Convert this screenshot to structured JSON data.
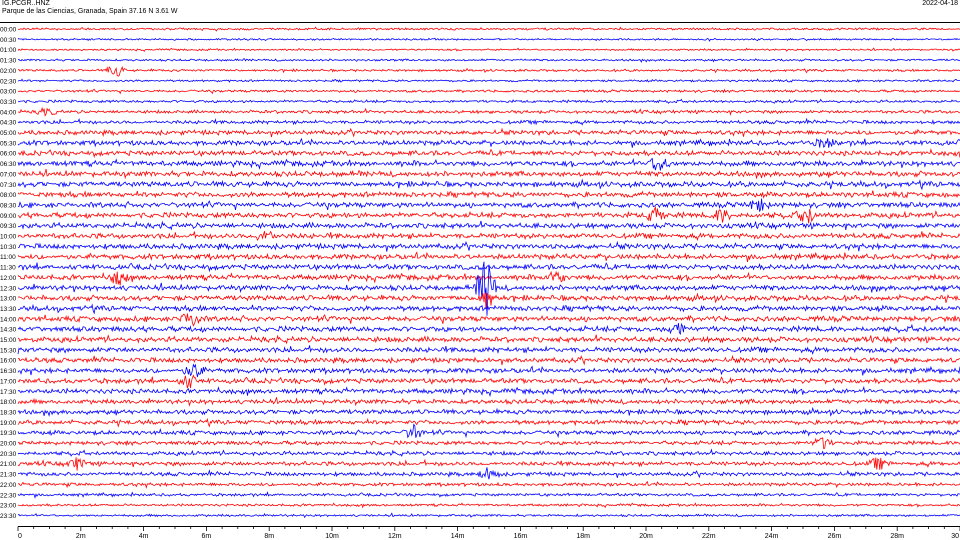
{
  "header": {
    "station": "IG.PCGR..HNZ",
    "location": "Parque de las Ciencias, Granada, Spain  37.16 N 3.61 W",
    "date": "2022-04-18"
  },
  "chart_data": {
    "type": "line",
    "title": "IG.PCGR..HNZ",
    "subtitle": "Parque de las Ciencias, Granada, Spain  37.16 N 3.61 W",
    "xlabel": "",
    "ylabel": "",
    "x_range_minutes": [
      0,
      30
    ],
    "x_ticks": [
      "0",
      "2m",
      "4m",
      "6m",
      "8m",
      "10m",
      "12m",
      "14m",
      "16m",
      "18m",
      "20m",
      "22m",
      "24m",
      "26m",
      "28m",
      "30"
    ],
    "x_tick_values": [
      0,
      2,
      4,
      6,
      8,
      10,
      12,
      14,
      16,
      18,
      20,
      22,
      24,
      26,
      28,
      30
    ],
    "row_labels": [
      "00:00",
      "00:30",
      "01:00",
      "01:30",
      "02:00",
      "02:30",
      "03:00",
      "03:30",
      "04:00",
      "04:30",
      "05:00",
      "05:30",
      "06:00",
      "06:30",
      "07:00",
      "07:30",
      "08:00",
      "08:30",
      "09:00",
      "09:30",
      "10:00",
      "10:30",
      "11:00",
      "11:30",
      "12:00",
      "12:30",
      "13:00",
      "13:30",
      "14:00",
      "14:30",
      "15:00",
      "15:30",
      "16:00",
      "16:30",
      "17:00",
      "17:30",
      "18:00",
      "18:30",
      "19:00",
      "19:30",
      "20:00",
      "20:30",
      "21:00",
      "21:30",
      "22:00",
      "22:30",
      "23:00",
      "23:30"
    ],
    "colors": [
      "#ff0000",
      "#0000ff"
    ],
    "row_noise_amplitude": [
      1.2,
      1.0,
      1.0,
      1.2,
      1.3,
      1.2,
      1.4,
      1.5,
      1.8,
      2.0,
      2.6,
      2.8,
      2.8,
      3.0,
      3.0,
      3.0,
      3.0,
      3.0,
      3.0,
      3.0,
      3.0,
      3.0,
      3.0,
      3.0,
      3.0,
      3.0,
      3.0,
      3.0,
      3.0,
      3.0,
      3.0,
      3.0,
      2.8,
      2.8,
      2.8,
      2.8,
      2.6,
      2.6,
      2.5,
      2.4,
      2.2,
      2.2,
      2.4,
      2.2,
      1.9,
      1.6,
      1.4,
      1.3
    ],
    "events": [
      {
        "row": "02:00",
        "minute": 3.1,
        "amplitude": 6
      },
      {
        "row": "04:00",
        "minute": 0.9,
        "amplitude": 3
      },
      {
        "row": "09:00",
        "minute": 20.3,
        "amplitude": 6
      },
      {
        "row": "09:00",
        "minute": 22.4,
        "amplitude": 5
      },
      {
        "row": "09:00",
        "minute": 25.1,
        "amplitude": 7
      },
      {
        "row": "08:30",
        "minute": 23.6,
        "amplitude": 5
      },
      {
        "row": "10:00",
        "minute": 7.9,
        "amplitude": 5
      },
      {
        "row": "12:00",
        "minute": 3.2,
        "amplitude": 6
      },
      {
        "row": "12:00",
        "minute": 17.1,
        "amplitude": 5
      },
      {
        "row": "12:30",
        "minute": 14.9,
        "amplitude": 38
      },
      {
        "row": "13:00",
        "minute": 14.9,
        "amplitude": 10
      },
      {
        "row": "14:00",
        "minute": 5.5,
        "amplitude": 7
      },
      {
        "row": "14:30",
        "minute": 21.0,
        "amplitude": 5
      },
      {
        "row": "16:30",
        "minute": 5.6,
        "amplitude": 6
      },
      {
        "row": "17:00",
        "minute": 5.4,
        "amplitude": 6
      },
      {
        "row": "19:30",
        "minute": 12.6,
        "amplitude": 6
      },
      {
        "row": "20:00",
        "minute": 25.6,
        "amplitude": 5
      },
      {
        "row": "21:00",
        "minute": 1.9,
        "amplitude": 5
      },
      {
        "row": "21:00",
        "minute": 27.4,
        "amplitude": 5
      },
      {
        "row": "21:30",
        "minute": 15.0,
        "amplitude": 6
      },
      {
        "row": "06:30",
        "minute": 20.4,
        "amplitude": 6
      },
      {
        "row": "05:30",
        "minute": 25.7,
        "amplitude": 4
      }
    ]
  }
}
